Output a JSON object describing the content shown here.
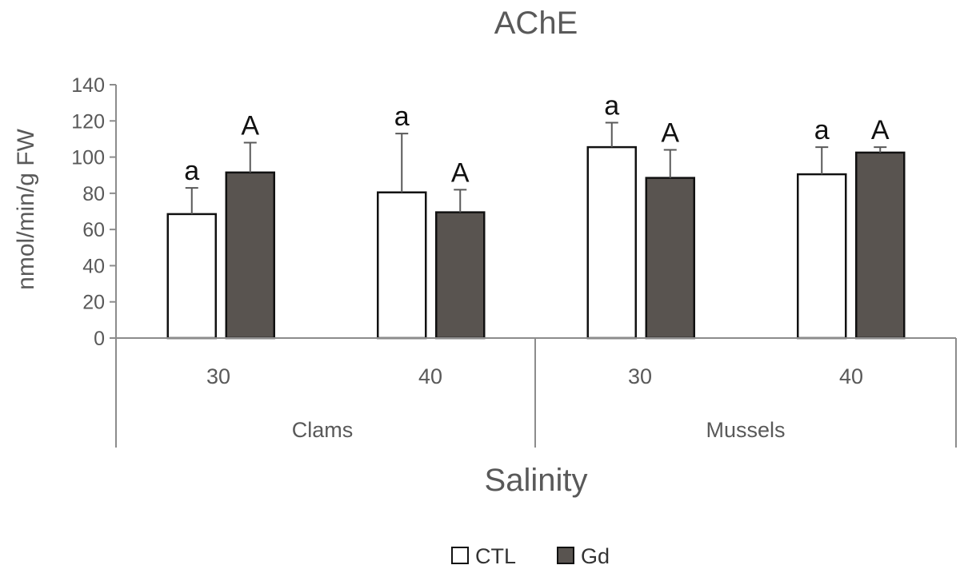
{
  "chart_data": {
    "type": "bar",
    "title": "AChE",
    "ylabel": "nmol/min/g FW",
    "xlabel": "Salinity",
    "ylim": [
      0,
      140
    ],
    "yticks": [
      0,
      20,
      40,
      60,
      80,
      100,
      120,
      140
    ],
    "groups": [
      {
        "name": "Clams",
        "categories": [
          "30",
          "40"
        ]
      },
      {
        "name": "Mussels",
        "categories": [
          "30",
          "40"
        ]
      }
    ],
    "categories": [
      "Clams 30",
      "Clams 40",
      "Mussels 30",
      "Mussels 40"
    ],
    "series": [
      {
        "name": "CTL",
        "color": "#ffffff",
        "values": [
          68.5,
          80.5,
          105.5,
          90.5
        ],
        "errors": [
          14.5,
          32.5,
          13.5,
          15
        ],
        "labels": [
          "a",
          "a",
          "a",
          "a"
        ]
      },
      {
        "name": "Gd",
        "color": "#595450",
        "values": [
          91.5,
          69.5,
          88.5,
          102.5
        ],
        "errors": [
          16.5,
          12.5,
          15.5,
          3
        ],
        "labels": [
          "A",
          "A",
          "A",
          "A"
        ]
      }
    ],
    "legend": [
      "CTL",
      "Gd"
    ],
    "legend_position": "bottom"
  }
}
